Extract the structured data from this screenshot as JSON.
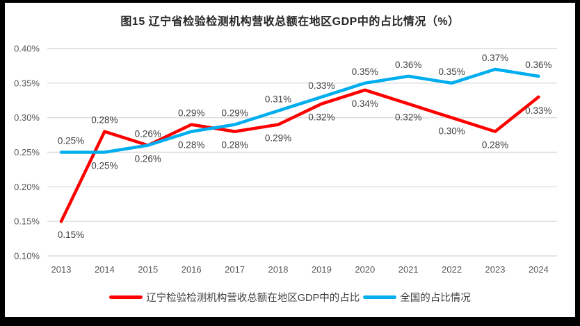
{
  "chart_data": {
    "type": "line",
    "title": "图15 辽宁省检验检测机构营收总额在地区GDP中的占比情况（%）",
    "categories": [
      "2013",
      "2014",
      "2015",
      "2016",
      "2017",
      "2018",
      "2019",
      "2020",
      "2021",
      "2022",
      "2023",
      "2024"
    ],
    "series": [
      {
        "name": "辽宁检验检测机构营收总额在地区GDP中的占比",
        "color": "#fe0000",
        "values": [
          0.15,
          0.28,
          0.26,
          0.29,
          0.28,
          0.29,
          0.32,
          0.34,
          0.32,
          0.3,
          0.28,
          0.33
        ],
        "data_labels": [
          "0.15%",
          "0.28%",
          "0.26%",
          "0.29%",
          "0.28%",
          "0.29%",
          "0.32%",
          "0.34%",
          "0.32%",
          "0.30%",
          "0.28%",
          "0.33%"
        ],
        "label_positions": [
          "below",
          "above",
          "above",
          "above",
          "below",
          "below",
          "below",
          "below",
          "below",
          "below",
          "below",
          "below"
        ]
      },
      {
        "name": "全国的占比情况",
        "color": "#00aeef",
        "values": [
          0.25,
          0.25,
          0.26,
          0.28,
          0.29,
          0.31,
          0.33,
          0.35,
          0.36,
          0.35,
          0.37,
          0.36
        ],
        "data_labels": [
          "0.25%",
          "0.25%",
          "0.26%",
          "0.28%",
          "0.29%",
          "0.31%",
          "0.33%",
          "0.35%",
          "0.36%",
          "0.35%",
          "0.37%",
          "0.36%"
        ],
        "label_positions": [
          "above",
          "below",
          "below",
          "below",
          "above",
          "above",
          "above",
          "above",
          "above",
          "above",
          "above",
          "above"
        ]
      }
    ],
    "y_axis": {
      "min": 0.1,
      "max": 0.4,
      "step": 0.05,
      "tick_labels": [
        "0.10%",
        "0.15%",
        "0.20%",
        "0.25%",
        "0.30%",
        "0.35%",
        "0.40%"
      ]
    },
    "grid": true,
    "legend_position": "bottom"
  },
  "colors": {
    "grid_line": "#dcdcdc",
    "axis_text": "#595959",
    "data_label_text": "#404040",
    "title_text": "#262626",
    "frame": "#000000",
    "background": "#ffffff"
  }
}
